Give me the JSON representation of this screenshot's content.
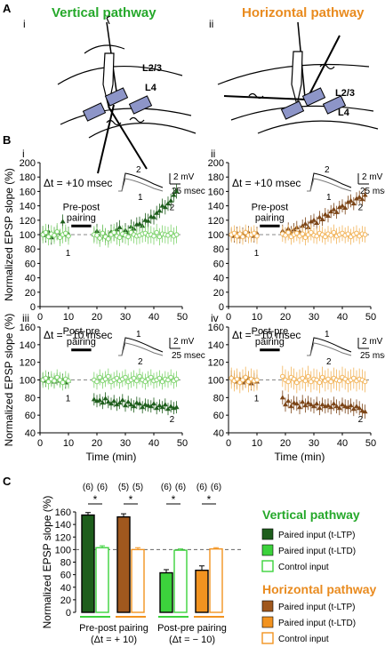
{
  "panel_letters": {
    "a": "A",
    "b": "B",
    "c": "C"
  },
  "panel_a": {
    "left": {
      "roman": "i",
      "title": "Vertical pathway",
      "layer_top": "L2/3",
      "layer_bottom": "L4"
    },
    "right": {
      "roman": "ii",
      "title": "Horizontal pathway",
      "layer_top": "L2/3",
      "layer_bottom": "L4"
    }
  },
  "colors": {
    "vertical_paired": "#1e5e1c",
    "vertical_paired_ltd": "#3cd23c",
    "vertical_control": "#7ed36d",
    "horizontal_paired": "#7b4416",
    "horizontal_paired_ltp_bar": "#a0581e",
    "horizontal_paired_ltd": "#f29320",
    "horizontal_control": "#f2b45a",
    "vertical_title": "#25a82a",
    "horizontal_title": "#e98b1f"
  },
  "chart_data": [
    {
      "id": "Bi",
      "type": "scatter",
      "roman": "i",
      "dt_label": "Δt = +10 msec",
      "pairing_label": [
        "Pre-post",
        "pairing"
      ],
      "ylabel": "Normalized EPSP slope (%)",
      "xlabel": "",
      "ylim": [
        0,
        200
      ],
      "xlim": [
        0,
        50
      ],
      "yticks": [
        "0",
        "20",
        "40",
        "60",
        "80",
        "100",
        "120",
        "140",
        "160",
        "180",
        "200"
      ],
      "xticks": [
        "0",
        "10",
        "20",
        "30",
        "40",
        "50"
      ],
      "scale_bar": {
        "v": "2 mV",
        "h": "25 msec"
      },
      "trace_labels": [
        "2",
        "1"
      ],
      "marker_labels": [
        "1",
        "2"
      ],
      "series": [
        {
          "name": "Paired input",
          "role": "paired",
          "x": [
            1,
            2,
            3,
            4,
            5,
            6,
            7,
            8,
            9,
            10,
            19,
            20,
            21,
            22,
            23,
            24,
            25,
            26,
            27,
            28,
            29,
            30,
            31,
            32,
            33,
            34,
            35,
            36,
            37,
            38,
            39,
            40,
            41,
            42,
            43,
            44,
            45,
            46,
            47,
            48
          ],
          "y": [
            102,
            99,
            104,
            96,
            100,
            103,
            97,
            118,
            100,
            101,
            100,
            105,
            97,
            103,
            99,
            96,
            104,
            101,
            107,
            110,
            99,
            106,
            103,
            111,
            108,
            114,
            115,
            112,
            120,
            119,
            125,
            124,
            130,
            133,
            140,
            138,
            143,
            147,
            155,
            160
          ],
          "err": 10
        },
        {
          "name": "Control input",
          "role": "control",
          "x": [
            1,
            2,
            3,
            4,
            5,
            6,
            7,
            8,
            9,
            10,
            19,
            20,
            21,
            22,
            23,
            24,
            25,
            26,
            27,
            28,
            29,
            30,
            31,
            32,
            33,
            34,
            35,
            36,
            37,
            38,
            39,
            40,
            41,
            42,
            43,
            44,
            45,
            46,
            47,
            48
          ],
          "y": [
            100,
            103,
            97,
            101,
            99,
            104,
            96,
            100,
            102,
            98,
            100,
            99,
            95,
            102,
            97,
            94,
            100,
            103,
            98,
            96,
            101,
            99,
            97,
            103,
            100,
            98,
            99,
            101,
            102,
            99,
            100,
            98,
            103,
            97,
            101,
            100,
            99,
            102,
            98,
            100
          ],
          "err": 12
        }
      ]
    },
    {
      "id": "Bii",
      "type": "scatter",
      "roman": "ii",
      "dt_label": "Δt = +10 msec",
      "pairing_label": [
        "Pre-post",
        "pairing"
      ],
      "ylabel": "",
      "xlabel": "",
      "ylim": [
        0,
        200
      ],
      "xlim": [
        0,
        50
      ],
      "yticks": [
        "0",
        "20",
        "40",
        "60",
        "80",
        "100",
        "120",
        "140",
        "160",
        "180",
        "200"
      ],
      "xticks": [
        "0",
        "10",
        "20",
        "30",
        "40",
        "50"
      ],
      "scale_bar": {
        "v": "2 mV",
        "h": "25 msec"
      },
      "trace_labels": [
        "2",
        "1"
      ],
      "marker_labels": [
        "1",
        "2"
      ],
      "series": [
        {
          "name": "Paired input",
          "role": "paired",
          "x": [
            1,
            2,
            3,
            4,
            5,
            6,
            7,
            8,
            9,
            10,
            19,
            20,
            21,
            22,
            23,
            24,
            25,
            26,
            27,
            28,
            29,
            30,
            31,
            32,
            33,
            34,
            35,
            36,
            37,
            38,
            39,
            40,
            41,
            42,
            43,
            44,
            45,
            46,
            47,
            48
          ],
          "y": [
            100,
            98,
            102,
            97,
            101,
            99,
            103,
            100,
            98,
            102,
            105,
            101,
            108,
            103,
            107,
            110,
            104,
            112,
            115,
            110,
            118,
            120,
            116,
            124,
            121,
            128,
            126,
            132,
            135,
            131,
            138,
            140,
            137,
            145,
            147,
            143,
            150,
            152,
            149,
            155
          ],
          "err": 9
        },
        {
          "name": "Control input",
          "role": "control",
          "x": [
            1,
            2,
            3,
            4,
            5,
            6,
            7,
            8,
            9,
            10,
            19,
            20,
            21,
            22,
            23,
            24,
            25,
            26,
            27,
            28,
            29,
            30,
            31,
            32,
            33,
            34,
            35,
            36,
            37,
            38,
            39,
            40,
            41,
            42,
            43,
            44,
            45,
            46,
            47,
            48
          ],
          "y": [
            100,
            102,
            98,
            101,
            97,
            103,
            99,
            100,
            102,
            98,
            101,
            99,
            103,
            97,
            100,
            102,
            98,
            101,
            96,
            100,
            103,
            99,
            98,
            102,
            100,
            97,
            101,
            99,
            103,
            98,
            100,
            102,
            99,
            101,
            97,
            100,
            102,
            98,
            101,
            100
          ],
          "err": 11
        }
      ]
    },
    {
      "id": "Biii",
      "type": "scatter",
      "roman": "iii",
      "dt_label": "Δt = −10 msec",
      "pairing_label": [
        "Post-pre",
        "pairing"
      ],
      "ylabel": "Normalized EPSP slope (%)",
      "xlabel": "Time (min)",
      "ylim": [
        40,
        160
      ],
      "xlim": [
        0,
        50
      ],
      "yticks": [
        "40",
        "60",
        "80",
        "100",
        "120",
        "140",
        "160"
      ],
      "xticks": [
        "0",
        "10",
        "20",
        "30",
        "40",
        "50"
      ],
      "scale_bar": {
        "v": "2 mV",
        "h": "25 msec"
      },
      "trace_labels": [
        "1",
        "2"
      ],
      "marker_labels": [
        "1",
        "2"
      ],
      "series": [
        {
          "name": "Paired input",
          "role": "paired",
          "x": [
            1,
            2,
            3,
            4,
            5,
            6,
            7,
            8,
            9,
            10,
            19,
            20,
            21,
            22,
            23,
            24,
            25,
            26,
            27,
            28,
            29,
            30,
            31,
            32,
            33,
            34,
            35,
            36,
            37,
            38,
            39,
            40,
            41,
            42,
            43,
            44,
            45,
            46,
            47,
            48
          ],
          "y": [
            101,
            99,
            102,
            100,
            98,
            101,
            99,
            100,
            97,
            99,
            78,
            76,
            77,
            74,
            79,
            75,
            73,
            76,
            72,
            74,
            77,
            71,
            75,
            72,
            70,
            74,
            73,
            69,
            72,
            71,
            70,
            73,
            68,
            71,
            69,
            72,
            67,
            70,
            68,
            69
          ],
          "err": 7
        },
        {
          "name": "Control input",
          "role": "control",
          "x": [
            1,
            2,
            3,
            4,
            5,
            6,
            7,
            8,
            9,
            10,
            19,
            20,
            21,
            22,
            23,
            24,
            25,
            26,
            27,
            28,
            29,
            30,
            31,
            32,
            33,
            34,
            35,
            36,
            37,
            38,
            39,
            40,
            41,
            42,
            43,
            44,
            45,
            46,
            47,
            48
          ],
          "y": [
            100,
            102,
            98,
            101,
            99,
            103,
            100,
            97,
            101,
            99,
            100,
            98,
            103,
            99,
            101,
            104,
            98,
            100,
            102,
            99,
            101,
            103,
            98,
            100,
            102,
            99,
            104,
            100,
            98,
            101,
            103,
            99,
            100,
            102,
            98,
            101,
            100,
            103,
            99,
            101
          ],
          "err": 9
        }
      ]
    },
    {
      "id": "Biv",
      "type": "scatter",
      "roman": "iv",
      "dt_label": "Δt = −10 msec",
      "pairing_label": [
        "Post-pre",
        "pairing"
      ],
      "ylabel": "",
      "xlabel": "Time (min)",
      "ylim": [
        40,
        160
      ],
      "xlim": [
        0,
        50
      ],
      "yticks": [
        "40",
        "60",
        "80",
        "100",
        "120",
        "140",
        "160"
      ],
      "xticks": [
        "0",
        "10",
        "20",
        "30",
        "40",
        "50"
      ],
      "scale_bar": {
        "v": "2 mV",
        "h": "25 msec"
      },
      "trace_labels": [
        "1",
        "2"
      ],
      "marker_labels": [
        "1",
        "2"
      ],
      "series": [
        {
          "name": "Paired input",
          "role": "paired",
          "x": [
            1,
            2,
            3,
            4,
            5,
            6,
            7,
            8,
            9,
            10,
            19,
            20,
            21,
            22,
            23,
            24,
            25,
            26,
            27,
            28,
            29,
            30,
            31,
            32,
            33,
            34,
            35,
            36,
            37,
            38,
            39,
            40,
            41,
            42,
            43,
            44,
            45,
            46,
            47,
            48
          ],
          "y": [
            103,
            100,
            98,
            101,
            97,
            99,
            102,
            96,
            100,
            98,
            80,
            72,
            76,
            70,
            74,
            73,
            69,
            75,
            71,
            74,
            72,
            70,
            73,
            68,
            72,
            70,
            71,
            69,
            73,
            70,
            68,
            72,
            70,
            69,
            71,
            67,
            70,
            68,
            65,
            64
          ],
          "err": 8
        },
        {
          "name": "Control input",
          "role": "control",
          "x": [
            1,
            2,
            3,
            4,
            5,
            6,
            7,
            8,
            9,
            10,
            19,
            20,
            21,
            22,
            23,
            24,
            25,
            26,
            27,
            28,
            29,
            30,
            31,
            32,
            33,
            34,
            35,
            36,
            37,
            38,
            39,
            40,
            41,
            42,
            43,
            44,
            45,
            46,
            47,
            48
          ],
          "y": [
            102,
            99,
            101,
            97,
            100,
            103,
            98,
            101,
            99,
            100,
            104,
            100,
            98,
            103,
            101,
            97,
            100,
            102,
            99,
            104,
            98,
            101,
            100,
            97,
            103,
            99,
            101,
            98,
            102,
            100,
            99,
            103,
            101,
            98,
            100,
            102,
            99,
            101,
            100,
            98
          ],
          "err": 12
        }
      ]
    },
    {
      "id": "C",
      "type": "bar",
      "ylabel": "Normalized EPSP slope (%)",
      "ylim": [
        0,
        160
      ],
      "yticks": [
        "0",
        "20",
        "40",
        "60",
        "80",
        "100",
        "120",
        "140",
        "160"
      ],
      "bars": [
        {
          "value": 155,
          "err": 4,
          "n": "(6)",
          "role": "v_ltp"
        },
        {
          "value": 103,
          "err": 3,
          "n": "(6)",
          "role": "v_ctrl"
        },
        {
          "value": 152,
          "err": 5,
          "n": "(5)",
          "role": "h_ltp"
        },
        {
          "value": 100,
          "err": 3,
          "n": "(5)",
          "role": "h_ctrl"
        },
        {
          "value": 63,
          "err": 5,
          "n": "(6)",
          "role": "v_ltd"
        },
        {
          "value": 99,
          "err": 2,
          "n": "(6)",
          "role": "v_ctrl"
        },
        {
          "value": 67,
          "err": 7,
          "n": "(6)",
          "role": "h_ltd"
        },
        {
          "value": 101,
          "err": 2,
          "n": "(6)",
          "role": "h_ctrl"
        }
      ],
      "significance": [
        "*",
        "*",
        "*",
        "*"
      ],
      "groups": [
        {
          "line1": "Pre-post pairing",
          "line2": "(Δt = + 10)"
        },
        {
          "line1": "Post-pre pairing",
          "line2": "(Δt = − 10)"
        }
      ]
    }
  ],
  "legend": {
    "vertical": {
      "title": "Vertical pathway",
      "items": [
        "Paired input (t-LTP)",
        "Paired input (t-LTD)",
        "Control input"
      ]
    },
    "horizontal": {
      "title": "Horizontal pathway",
      "items": [
        "Paired input (t-LTP)",
        "Paired input (t-LTD)",
        "Control input"
      ]
    }
  }
}
